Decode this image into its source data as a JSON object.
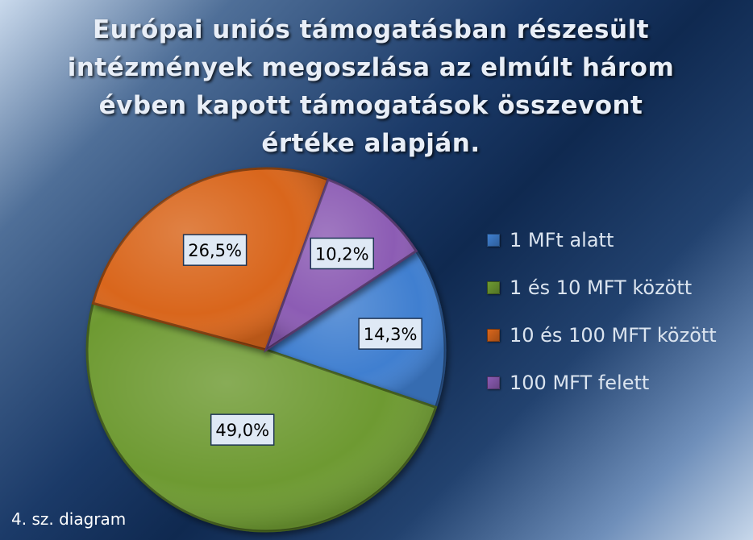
{
  "chart_data": {
    "type": "pie",
    "title_lines": [
      "Európai uniós támogatásban részesült",
      "intézmények megoszlása az elmúlt három",
      "évben kapott támogatások összevont",
      "értéke alapján."
    ],
    "categories": [
      "1 MFt alatt",
      "1 és 10 MFT között",
      "10 és 100 MFT között",
      "100 MFT felett"
    ],
    "values": [
      14.3,
      49.0,
      26.5,
      10.2
    ],
    "data_labels": [
      "14,3%",
      "49,0%",
      "26,5%",
      "10,2%"
    ],
    "colors": [
      "#3f7fd0",
      "#6e9a32",
      "#d9661c",
      "#8c5cb4"
    ],
    "legend_position": "right",
    "start_angle_deg": -33
  },
  "footnote": "4. sz. diagram"
}
